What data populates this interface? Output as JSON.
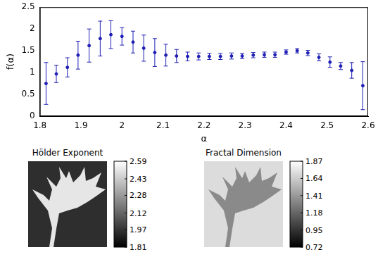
{
  "chart_data": {
    "type": "scatter",
    "x_label": "α",
    "y_label": "f(α)",
    "x": [
      1.815,
      1.84,
      1.867,
      1.893,
      1.92,
      1.947,
      1.973,
      2.0,
      2.027,
      2.053,
      2.08,
      2.107,
      2.133,
      2.16,
      2.187,
      2.213,
      2.24,
      2.267,
      2.293,
      2.32,
      2.347,
      2.373,
      2.4,
      2.427,
      2.453,
      2.48,
      2.507,
      2.533,
      2.56,
      2.587
    ],
    "values": [
      0.75,
      0.97,
      1.12,
      1.4,
      1.62,
      1.78,
      1.87,
      1.83,
      1.7,
      1.56,
      1.46,
      1.4,
      1.38,
      1.37,
      1.37,
      1.37,
      1.37,
      1.38,
      1.38,
      1.4,
      1.41,
      1.41,
      1.47,
      1.5,
      1.45,
      1.35,
      1.24,
      1.15,
      1.05,
      0.7
    ],
    "errors": [
      0.48,
      0.2,
      0.22,
      0.32,
      0.38,
      0.4,
      0.32,
      0.2,
      0.25,
      0.3,
      0.32,
      0.25,
      0.15,
      0.1,
      0.08,
      0.07,
      0.07,
      0.07,
      0.06,
      0.06,
      0.06,
      0.06,
      0.05,
      0.05,
      0.06,
      0.08,
      0.12,
      0.08,
      0.18,
      0.55
    ],
    "color": "#1f1fb4",
    "marker": "point",
    "xlim": [
      1.8,
      2.6
    ],
    "xticks": [
      1.8,
      1.9,
      2,
      2.1,
      2.2,
      2.3,
      2.4,
      2.5,
      2.6
    ],
    "ylim": [
      0,
      2.5
    ],
    "yticks": [
      0,
      0.5,
      1,
      1.5,
      2,
      2.5
    ],
    "grid": false
  },
  "panels": [
    {
      "title": "Hölder Exponent",
      "colorbar": {
        "range": [
          1.81,
          2.59
        ],
        "ticks": [
          1.81,
          1.97,
          2.12,
          2.28,
          2.43,
          2.59
        ]
      }
    },
    {
      "title": "Fractal Dimension",
      "colorbar": {
        "range": [
          0.72,
          1.87
        ],
        "ticks": [
          0.72,
          0.95,
          1.18,
          1.41,
          1.64,
          1.87
        ]
      }
    }
  ]
}
